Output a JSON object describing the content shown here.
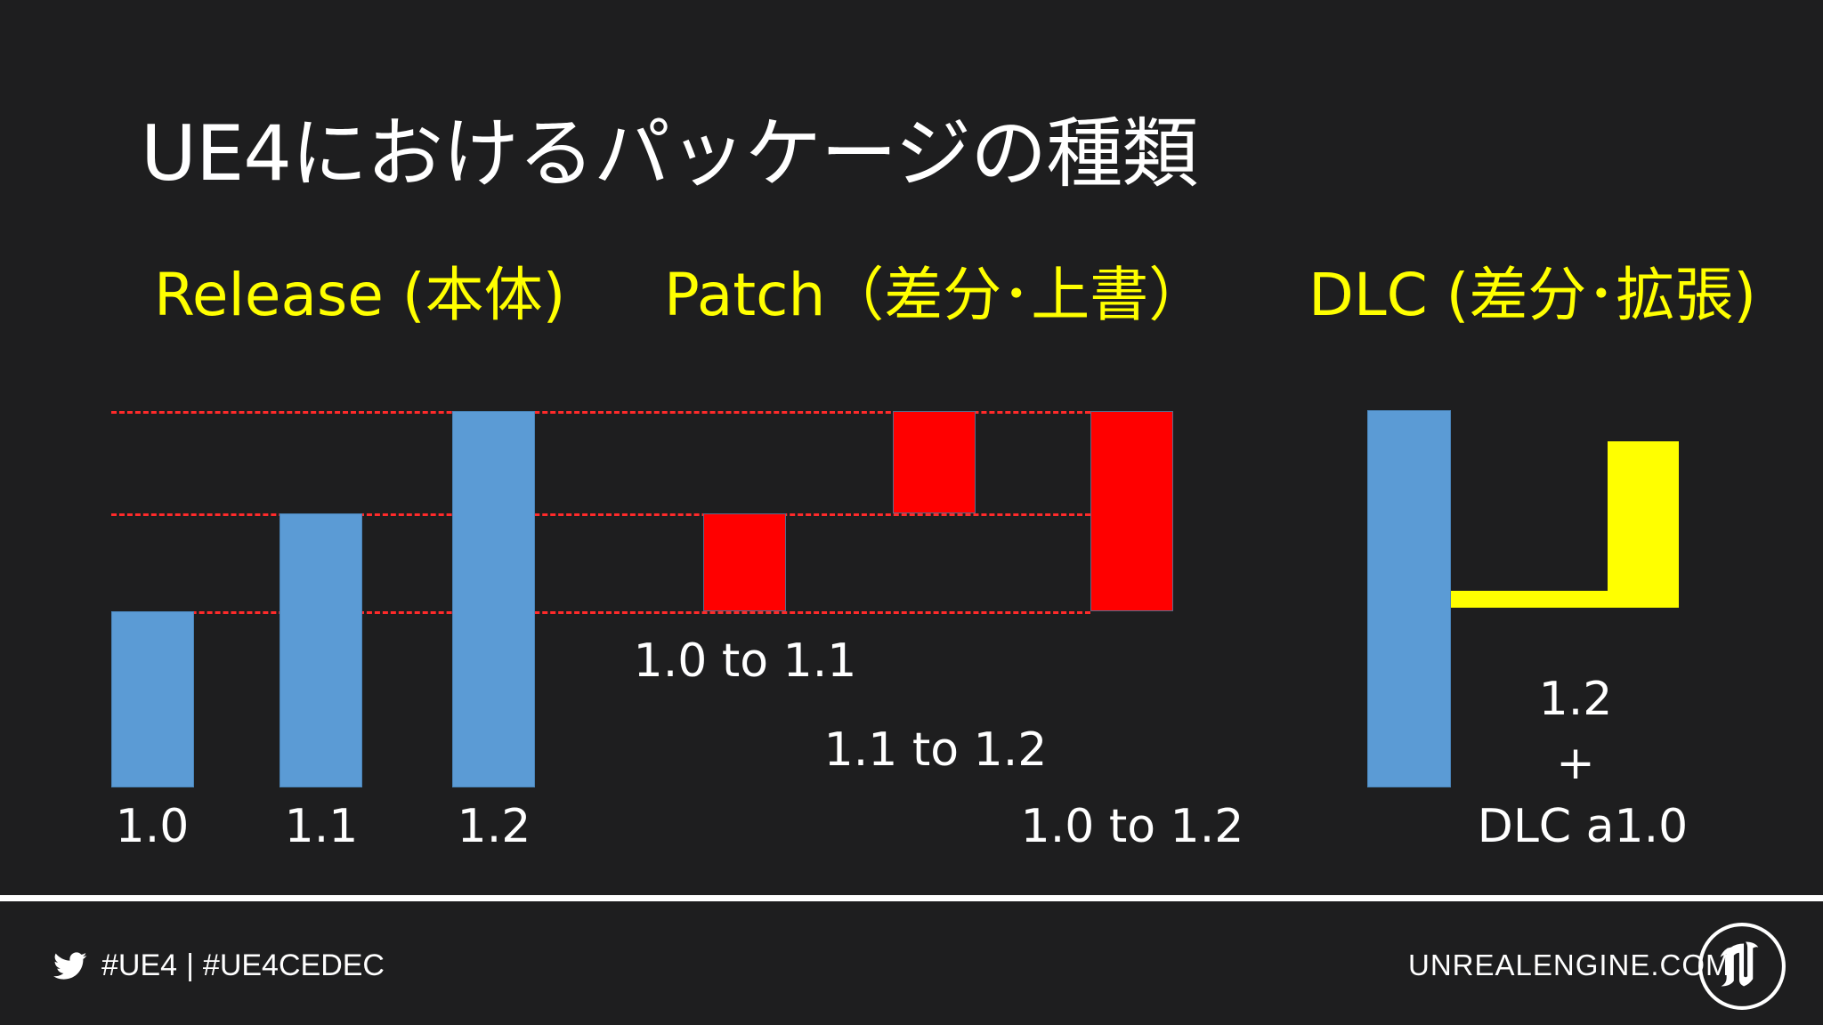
{
  "slide": {
    "title": "UE4におけるパッケージの種類"
  },
  "headings": {
    "release": "Release (本体)",
    "patch": "Patch（差分･上書）",
    "dlc": "DLC (差分･拡張)"
  },
  "release_bars": [
    {
      "label": "1.0",
      "level": 1.0
    },
    {
      "label": "1.1",
      "level": 1.1
    },
    {
      "label": "1.2",
      "level": 1.2
    }
  ],
  "patch_bars": [
    {
      "label": "1.0 to 1.1",
      "from": 1.0,
      "to": 1.1
    },
    {
      "label": "1.1 to 1.2",
      "from": 1.1,
      "to": 1.2
    },
    {
      "label": "1.0 to 1.2",
      "from": 1.0,
      "to": 1.2
    }
  ],
  "dlc": {
    "base_label": "1.2",
    "plus": "+",
    "dlc_label": "DLC a1.0"
  },
  "colors": {
    "background": "#1e1e1f",
    "release_bar": "#5b9bd5",
    "patch_bar": "#ff0000",
    "dlc_bar": "#ffff00",
    "heading": "#ffff00",
    "guide_line": "#ff2a2a"
  },
  "footer": {
    "bird_icon": "twitter-bird-icon",
    "hashtag_1": "#UE4",
    "separator": "|",
    "hashtag_2": "#UE4CEDEC",
    "site": "UNREALENGINE.COM",
    "logo_icon": "unreal-engine-logo-icon"
  }
}
